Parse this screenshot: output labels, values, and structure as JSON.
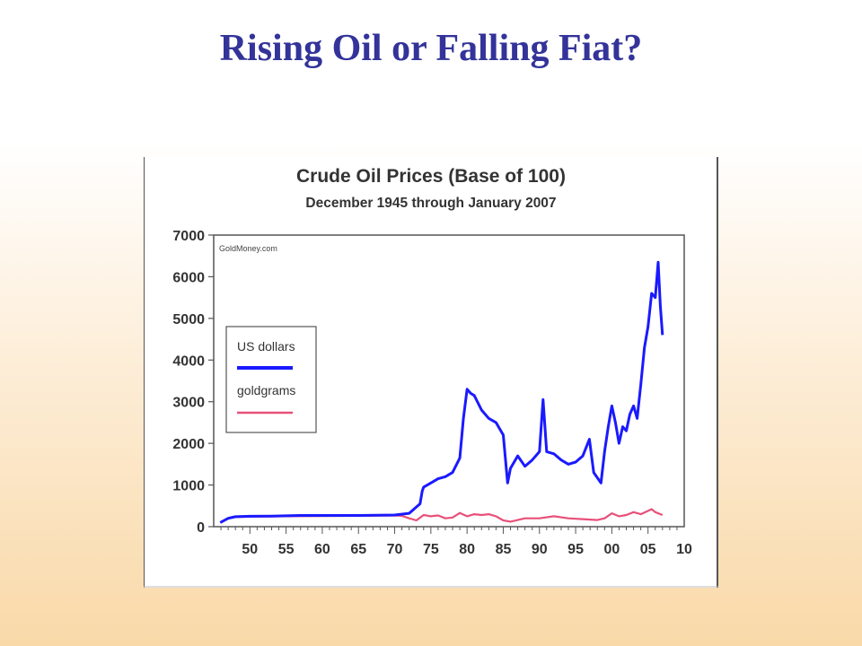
{
  "slide": {
    "title": "Rising Oil or Falling Fiat?"
  },
  "chart_data": {
    "type": "line",
    "title": "Crude Oil Prices (Base of 100)",
    "subtitle": "December 1945 through January 2007",
    "source_note": "GoldMoney.com",
    "xlabel": "",
    "ylabel": "",
    "xlim": [
      1945,
      2010
    ],
    "ylim": [
      0,
      7000
    ],
    "x_ticks": [
      1950,
      1955,
      1960,
      1965,
      1970,
      1975,
      1980,
      1985,
      1990,
      1995,
      2000,
      2005,
      2010
    ],
    "x_tick_labels": [
      "50",
      "55",
      "60",
      "65",
      "70",
      "75",
      "80",
      "85",
      "90",
      "95",
      "00",
      "05",
      "10"
    ],
    "y_ticks": [
      0,
      1000,
      2000,
      3000,
      4000,
      5000,
      6000,
      7000
    ],
    "y_tick_labels": [
      "0",
      "1000",
      "2000",
      "3000",
      "4000",
      "5000",
      "6000",
      "7000"
    ],
    "grid": false,
    "legend_position": "middle-left",
    "series": [
      {
        "name": "US dollars",
        "color": "#1a1aff",
        "x": [
          1945.9,
          1947,
          1948,
          1950,
          1953,
          1957,
          1960,
          1965,
          1970,
          1972,
          1973.5,
          1973.8,
          1974,
          1975,
          1976,
          1977,
          1978,
          1979,
          1979.5,
          1980,
          1980.5,
          1981,
          1982,
          1983,
          1984,
          1985,
          1985.6,
          1986,
          1987,
          1988,
          1989,
          1990,
          1990.5,
          1991,
          1992,
          1993,
          1994,
          1995,
          1996,
          1996.9,
          1997.5,
          1998.5,
          1999,
          1999.5,
          2000,
          2000.5,
          2001,
          2001.5,
          2002,
          2002.5,
          2003,
          2003.5,
          2004,
          2004.5,
          2005,
          2005.5,
          2006,
          2006.4,
          2006.7,
          2007.0
        ],
        "values": [
          100,
          200,
          240,
          250,
          255,
          270,
          270,
          270,
          280,
          320,
          550,
          850,
          950,
          1050,
          1150,
          1200,
          1300,
          1650,
          2600,
          3300,
          3200,
          3150,
          2800,
          2600,
          2500,
          2200,
          1050,
          1400,
          1700,
          1450,
          1600,
          1800,
          3050,
          1800,
          1750,
          1600,
          1500,
          1550,
          1700,
          2100,
          1300,
          1050,
          1800,
          2400,
          2900,
          2500,
          2000,
          2400,
          2300,
          2700,
          2900,
          2600,
          3400,
          4300,
          4800,
          5600,
          5500,
          6350,
          5300,
          4600
        ]
      },
      {
        "name": "goldgrams",
        "color": "#e8507a",
        "x": [
          1945.9,
          1947,
          1948,
          1950,
          1955,
          1960,
          1965,
          1970,
          1971,
          1972,
          1973,
          1974,
          1975,
          1976,
          1977,
          1978,
          1979,
          1980,
          1981,
          1982,
          1983,
          1984,
          1985,
          1986,
          1988,
          1990,
          1992,
          1994,
          1996,
          1998,
          1999,
          2000,
          2001,
          2002,
          2003,
          2004,
          2005,
          2005.5,
          2006,
          2007
        ],
        "values": [
          100,
          200,
          230,
          240,
          250,
          255,
          260,
          270,
          260,
          200,
          150,
          280,
          250,
          270,
          200,
          220,
          330,
          250,
          300,
          280,
          300,
          250,
          150,
          120,
          200,
          200,
          250,
          200,
          180,
          160,
          200,
          320,
          250,
          280,
          350,
          300,
          380,
          420,
          350,
          280
        ]
      }
    ]
  }
}
